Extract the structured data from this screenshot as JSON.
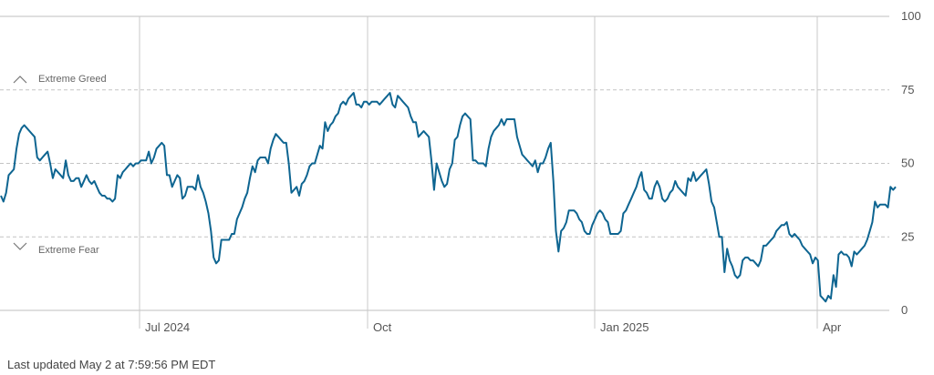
{
  "chart_data": {
    "type": "line",
    "title": "",
    "xlabel": "",
    "ylabel": "",
    "ylim": [
      0,
      100
    ],
    "y_ticks": [
      "0",
      "25",
      "50",
      "75",
      "100"
    ],
    "x_ticks": [
      "Jul 2024",
      "Oct",
      "Jan 2025",
      "Apr"
    ],
    "zones": {
      "greed": {
        "label": "Extreme Greed",
        "value": 75,
        "icon": "chevron-up-icon"
      },
      "fear": {
        "label": "Extreme Fear",
        "value": 25,
        "icon": "chevron-down-icon"
      }
    },
    "line_color": "#0e6591",
    "grid": true,
    "series": [
      {
        "values": [
          39,
          37,
          40,
          46,
          47,
          48,
          55,
          60,
          62,
          63,
          62,
          61,
          60,
          59,
          52,
          51,
          52,
          53,
          54,
          50,
          45,
          48,
          47,
          46,
          45,
          51,
          46,
          44,
          44,
          45,
          45,
          42,
          44,
          46,
          44,
          43,
          44,
          42,
          40,
          39,
          39,
          38,
          38,
          37,
          38,
          46,
          45,
          47,
          48,
          49,
          50,
          49,
          50,
          50,
          51,
          51,
          51,
          54,
          50,
          52,
          55,
          56,
          57,
          56,
          46,
          46,
          42,
          44,
          46,
          45,
          38,
          39,
          42,
          42,
          42,
          41,
          46,
          42,
          40,
          37,
          33,
          27,
          18,
          16,
          17,
          24,
          24,
          24,
          24,
          26,
          26,
          31,
          33,
          35,
          38,
          40,
          45,
          49,
          47,
          51,
          52,
          52,
          52,
          50,
          55,
          58,
          60,
          59,
          58,
          57,
          57,
          50,
          40,
          41,
          42,
          39,
          43,
          44,
          46,
          49,
          50,
          50,
          53,
          56,
          55,
          64,
          61,
          63,
          64,
          66,
          67,
          70,
          71,
          70,
          72,
          73,
          74,
          70,
          70,
          69,
          71,
          71,
          70,
          71,
          71,
          71,
          70,
          71,
          72,
          73,
          74,
          70,
          69,
          73,
          72,
          71,
          70,
          69,
          66,
          64,
          64,
          59,
          60,
          61,
          60,
          59,
          51,
          41,
          50,
          47,
          44,
          42,
          43,
          48,
          50,
          58,
          59,
          63,
          66,
          67,
          66,
          65,
          51,
          51,
          50,
          50,
          50,
          49,
          55,
          59,
          61,
          62,
          63,
          65,
          63,
          65,
          65,
          65,
          65,
          59,
          56,
          53,
          52,
          51,
          50,
          49,
          51,
          47,
          50,
          50,
          52,
          55,
          57,
          44,
          27,
          20,
          27,
          28,
          30,
          34,
          34,
          34,
          33,
          31,
          30,
          27,
          26,
          26,
          29,
          31,
          33,
          34,
          33,
          31,
          30,
          26,
          26,
          26,
          26,
          27,
          33,
          34,
          36,
          38,
          40,
          42,
          45,
          47,
          41,
          40,
          38,
          38,
          42,
          44,
          42,
          38,
          37,
          38,
          40,
          41,
          44,
          42,
          41,
          40,
          39,
          45,
          44,
          47,
          44,
          45,
          46,
          47,
          48,
          43,
          37,
          35,
          30,
          25,
          25,
          13,
          21,
          17,
          15,
          12,
          11,
          12,
          17,
          18,
          18,
          17,
          17,
          16,
          15,
          17,
          22,
          22,
          23,
          24,
          25,
          27,
          28,
          29,
          29,
          30,
          26,
          25,
          26,
          25,
          24,
          22,
          21,
          20,
          19,
          16,
          18,
          17,
          5,
          4,
          3,
          5,
          4,
          12,
          8,
          19,
          20,
          19,
          19,
          18,
          15,
          20,
          19,
          20,
          21,
          22,
          24,
          27,
          30,
          37,
          35,
          36,
          36,
          36,
          35,
          42,
          41,
          42
        ]
      }
    ]
  },
  "footer": {
    "last_updated": "Last updated May 2 at 7:59:56 PM EDT"
  }
}
